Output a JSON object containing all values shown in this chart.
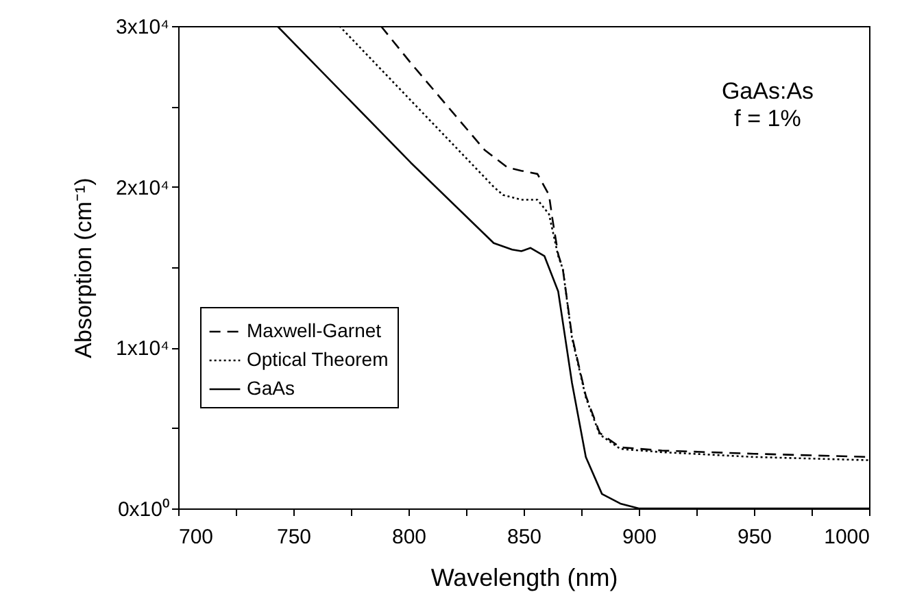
{
  "chart_data": {
    "type": "line",
    "xlabel": "Wavelength (nm)",
    "ylabel": "Absorption (cm⁻¹)",
    "annotations": [
      "GaAs:As",
      "f = 1%"
    ],
    "xlim": [
      700,
      1000
    ],
    "ylim": [
      0,
      30000
    ],
    "xticks": [
      700,
      {
        "value": 725,
        "label": null
      },
      750,
      {
        "value": 775,
        "label": null
      },
      800,
      {
        "value": 825,
        "label": null
      },
      850,
      {
        "value": 875,
        "label": null
      },
      900,
      {
        "value": 925,
        "label": null
      },
      950,
      {
        "value": 975,
        "label": null
      },
      1000
    ],
    "yticks": [
      {
        "value": 0,
        "label": "0x10⁰"
      },
      {
        "value": 5000,
        "label": null
      },
      {
        "value": 10000,
        "label": "1x10⁴"
      },
      {
        "value": 15000,
        "label": null
      },
      {
        "value": 20000,
        "label": "2x10⁴"
      },
      {
        "value": 25000,
        "label": null
      },
      {
        "value": 30000,
        "label": "3x10⁴"
      }
    ],
    "grid": false,
    "legend": "left",
    "series": [
      {
        "name": "Maxwell-Garnet",
        "color": "#000000",
        "line_style": "dashed",
        "x": [
          788,
          801,
          833,
          843,
          849,
          856,
          861,
          862.5,
          865,
          867,
          871,
          877,
          883,
          892,
          910,
          950,
          1000
        ],
        "values": [
          30000,
          27700,
          22300,
          21200,
          21000,
          20800,
          19500,
          18000,
          15800,
          14900,
          10700,
          7000,
          4700,
          3800,
          3600,
          3400,
          3200
        ]
      },
      {
        "name": "Optical Theorem",
        "color": "#000000",
        "line_style": "dotted",
        "x": [
          770,
          837,
          841,
          849,
          856,
          861,
          865,
          867,
          871,
          877,
          883,
          892,
          910,
          950,
          1000
        ],
        "values": [
          30000,
          20000,
          19500,
          19200,
          19200,
          18300,
          15700,
          14900,
          10600,
          6900,
          4600,
          3700,
          3500,
          3200,
          3000
        ]
      },
      {
        "name": "GaAs",
        "color": "#000000",
        "line_style": "solid",
        "x": [
          743,
          801,
          837,
          845,
          849,
          853,
          859,
          865,
          871,
          877,
          884,
          892,
          900,
          950,
          1000
        ],
        "values": [
          30000,
          21500,
          16500,
          16100,
          16000,
          16200,
          15700,
          13500,
          7800,
          3200,
          900,
          300,
          0,
          0,
          0
        ]
      }
    ]
  }
}
